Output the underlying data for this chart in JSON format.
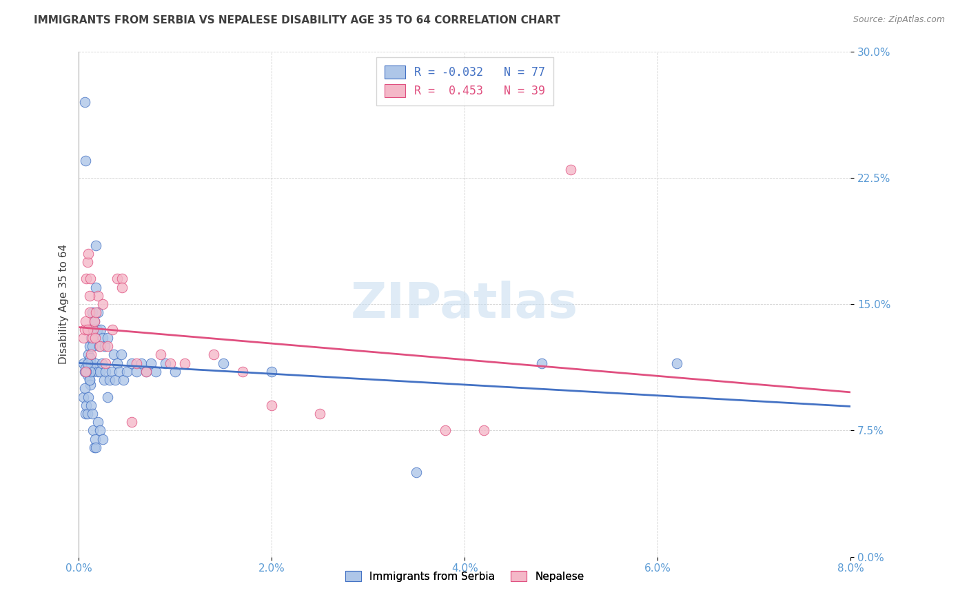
{
  "title": "IMMIGRANTS FROM SERBIA VS NEPALESE DISABILITY AGE 35 TO 64 CORRELATION CHART",
  "source": "Source: ZipAtlas.com",
  "ylabel": "Disability Age 35 to 64",
  "xlim": [
    0.0,
    8.0
  ],
  "ylim": [
    0.0,
    30.0
  ],
  "yticks": [
    0.0,
    7.5,
    15.0,
    22.5,
    30.0
  ],
  "xticks": [
    0.0,
    2.0,
    4.0,
    6.0,
    8.0
  ],
  "serbia_r": -0.032,
  "serbia_n": 77,
  "nepal_r": 0.453,
  "nepal_n": 39,
  "legend_labels": [
    "Immigrants from Serbia",
    "Nepalese"
  ],
  "serbia_color": "#aec6e8",
  "serbia_line_color": "#4472c4",
  "nepal_color": "#f4b8c8",
  "nepal_line_color": "#e05080",
  "title_color": "#3f3f3f",
  "axis_label_color": "#5b9bd5",
  "watermark": "ZIPatlas",
  "serbia_x": [
    0.05,
    0.06,
    0.07,
    0.08,
    0.09,
    0.1,
    0.1,
    0.11,
    0.11,
    0.12,
    0.12,
    0.13,
    0.13,
    0.14,
    0.14,
    0.15,
    0.15,
    0.16,
    0.17,
    0.18,
    0.18,
    0.19,
    0.2,
    0.2,
    0.21,
    0.22,
    0.23,
    0.24,
    0.25,
    0.26,
    0.27,
    0.28,
    0.3,
    0.32,
    0.34,
    0.36,
    0.38,
    0.4,
    0.42,
    0.44,
    0.46,
    0.5,
    0.55,
    0.6,
    0.65,
    0.7,
    0.75,
    0.8,
    0.9,
    1.0,
    0.05,
    0.06,
    0.07,
    0.08,
    0.09,
    0.1,
    0.11,
    0.12,
    0.13,
    0.14,
    0.15,
    0.16,
    0.17,
    0.18,
    0.2,
    0.22,
    0.25,
    0.3,
    1.5,
    2.0,
    3.5,
    4.8,
    6.2,
    0.06,
    0.07,
    0.08,
    0.09
  ],
  "serbia_y": [
    11.5,
    11.0,
    11.2,
    11.0,
    10.8,
    11.5,
    12.0,
    10.5,
    12.5,
    11.8,
    10.2,
    11.5,
    13.0,
    12.5,
    14.5,
    11.0,
    13.5,
    14.0,
    11.5,
    16.0,
    18.5,
    13.5,
    11.0,
    14.5,
    12.5,
    11.0,
    13.5,
    11.5,
    13.0,
    10.5,
    12.5,
    11.0,
    13.0,
    10.5,
    11.0,
    12.0,
    10.5,
    11.5,
    11.0,
    12.0,
    10.5,
    11.0,
    11.5,
    11.0,
    11.5,
    11.0,
    11.5,
    11.0,
    11.5,
    11.0,
    9.5,
    10.0,
    8.5,
    9.0,
    8.5,
    9.5,
    10.5,
    11.0,
    9.0,
    8.5,
    7.5,
    6.5,
    7.0,
    6.5,
    8.0,
    7.5,
    7.0,
    9.5,
    11.5,
    11.0,
    5.0,
    11.5,
    11.5,
    27.0,
    23.5,
    11.0,
    11.5
  ],
  "nepal_x": [
    0.05,
    0.06,
    0.07,
    0.08,
    0.09,
    0.1,
    0.11,
    0.12,
    0.13,
    0.14,
    0.15,
    0.16,
    0.17,
    0.18,
    0.2,
    0.22,
    0.25,
    0.28,
    0.3,
    0.35,
    0.4,
    0.45,
    0.55,
    0.6,
    0.7,
    0.85,
    0.95,
    1.1,
    1.4,
    1.7,
    2.0,
    2.5,
    3.8,
    4.2,
    5.1,
    0.07,
    0.09,
    0.11,
    0.45
  ],
  "nepal_y": [
    13.0,
    13.5,
    14.0,
    16.5,
    17.5,
    18.0,
    14.5,
    16.5,
    12.0,
    13.0,
    13.5,
    14.0,
    13.0,
    14.5,
    15.5,
    12.5,
    15.0,
    11.5,
    12.5,
    13.5,
    16.5,
    16.5,
    8.0,
    11.5,
    11.0,
    12.0,
    11.5,
    11.5,
    12.0,
    11.0,
    9.0,
    8.5,
    7.5,
    7.5,
    23.0,
    11.0,
    13.5,
    15.5,
    16.0
  ]
}
